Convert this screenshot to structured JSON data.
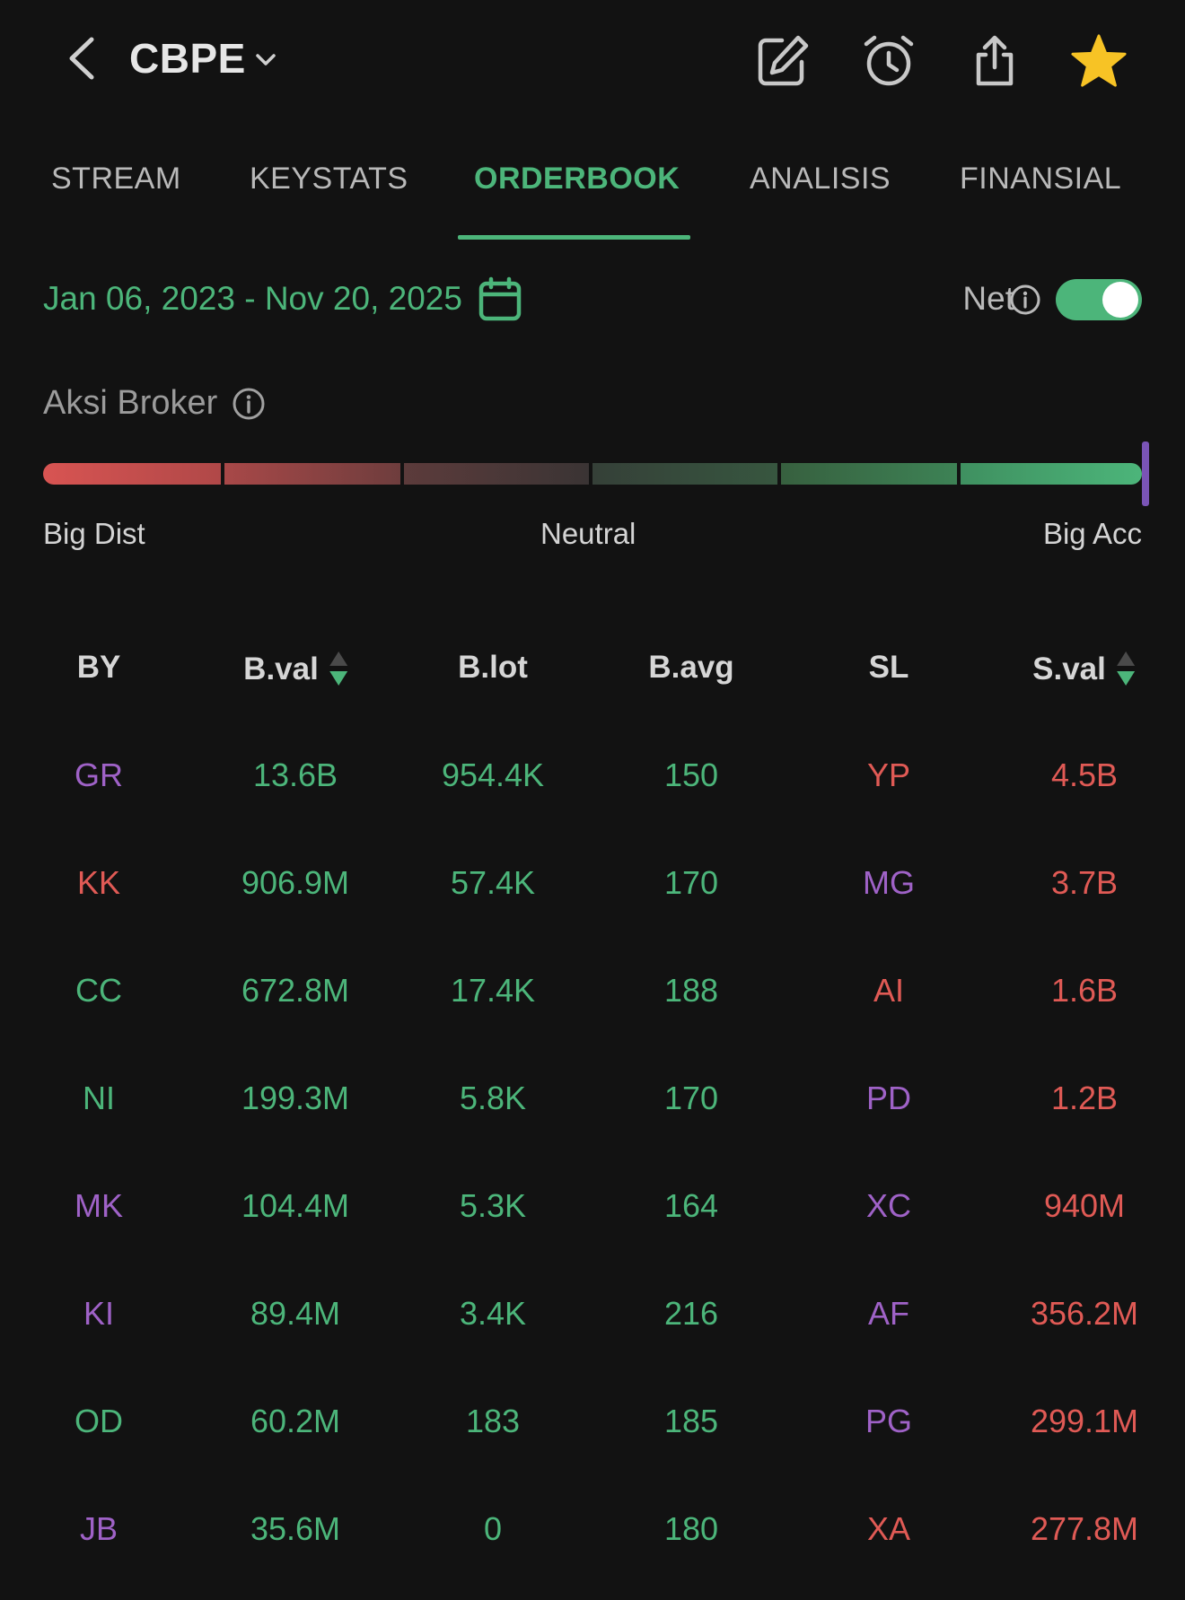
{
  "header": {
    "ticker": "CBPE",
    "icons": [
      "back-arrow-icon",
      "edit-icon",
      "alarm-icon",
      "share-icon",
      "star-icon"
    ]
  },
  "tabs": [
    {
      "label": "STREAM",
      "active": false
    },
    {
      "label": "KEYSTATS",
      "active": false
    },
    {
      "label": "ORDERBOOK",
      "active": true
    },
    {
      "label": "ANALISIS",
      "active": false
    },
    {
      "label": "FINANSIAL",
      "active": false
    }
  ],
  "filters": {
    "date_range": "Jan 06, 2023 - Nov 20, 2025",
    "net_label": "Net",
    "net_enabled": true
  },
  "aksi_broker": {
    "title": "Aksi Broker",
    "labels": {
      "left": "Big Dist",
      "center": "Neutral",
      "right": "Big Acc"
    },
    "level": 1.0
  },
  "table": {
    "headers": [
      "BY",
      "B.val",
      "B.lot",
      "B.avg",
      "SL",
      "S.val"
    ],
    "rows": [
      {
        "by": "GR",
        "by_color": "purple",
        "bval": "13.6B",
        "blot": "954.4K",
        "bavg": "150",
        "sl": "YP",
        "sl_color": "red",
        "sval": "4.5B"
      },
      {
        "by": "KK",
        "by_color": "red",
        "bval": "906.9M",
        "blot": "57.4K",
        "bavg": "170",
        "sl": "MG",
        "sl_color": "purple",
        "sval": "3.7B"
      },
      {
        "by": "CC",
        "by_color": "green",
        "bval": "672.8M",
        "blot": "17.4K",
        "bavg": "188",
        "sl": "AI",
        "sl_color": "red",
        "sval": "1.6B"
      },
      {
        "by": "NI",
        "by_color": "green",
        "bval": "199.3M",
        "blot": "5.8K",
        "bavg": "170",
        "sl": "PD",
        "sl_color": "purple",
        "sval": "1.2B"
      },
      {
        "by": "MK",
        "by_color": "purple",
        "bval": "104.4M",
        "blot": "5.3K",
        "bavg": "164",
        "sl": "XC",
        "sl_color": "purple",
        "sval": "940M"
      },
      {
        "by": "KI",
        "by_color": "purple",
        "bval": "89.4M",
        "blot": "3.4K",
        "bavg": "216",
        "sl": "AF",
        "sl_color": "purple",
        "sval": "356.2M"
      },
      {
        "by": "OD",
        "by_color": "green",
        "bval": "60.2M",
        "blot": "183",
        "bavg": "185",
        "sl": "PG",
        "sl_color": "purple",
        "sval": "299.1M"
      },
      {
        "by": "JB",
        "by_color": "purple",
        "bval": "35.6M",
        "blot": "0",
        "bavg": "180",
        "sl": "XA",
        "sl_color": "red",
        "sval": "277.8M"
      }
    ]
  },
  "colors": {
    "background": "#121212",
    "accent_green": "#4cb57a",
    "sell_red": "#e05a55",
    "broker_purple": "#9f62c7",
    "marker_purple": "#7a54b6"
  }
}
